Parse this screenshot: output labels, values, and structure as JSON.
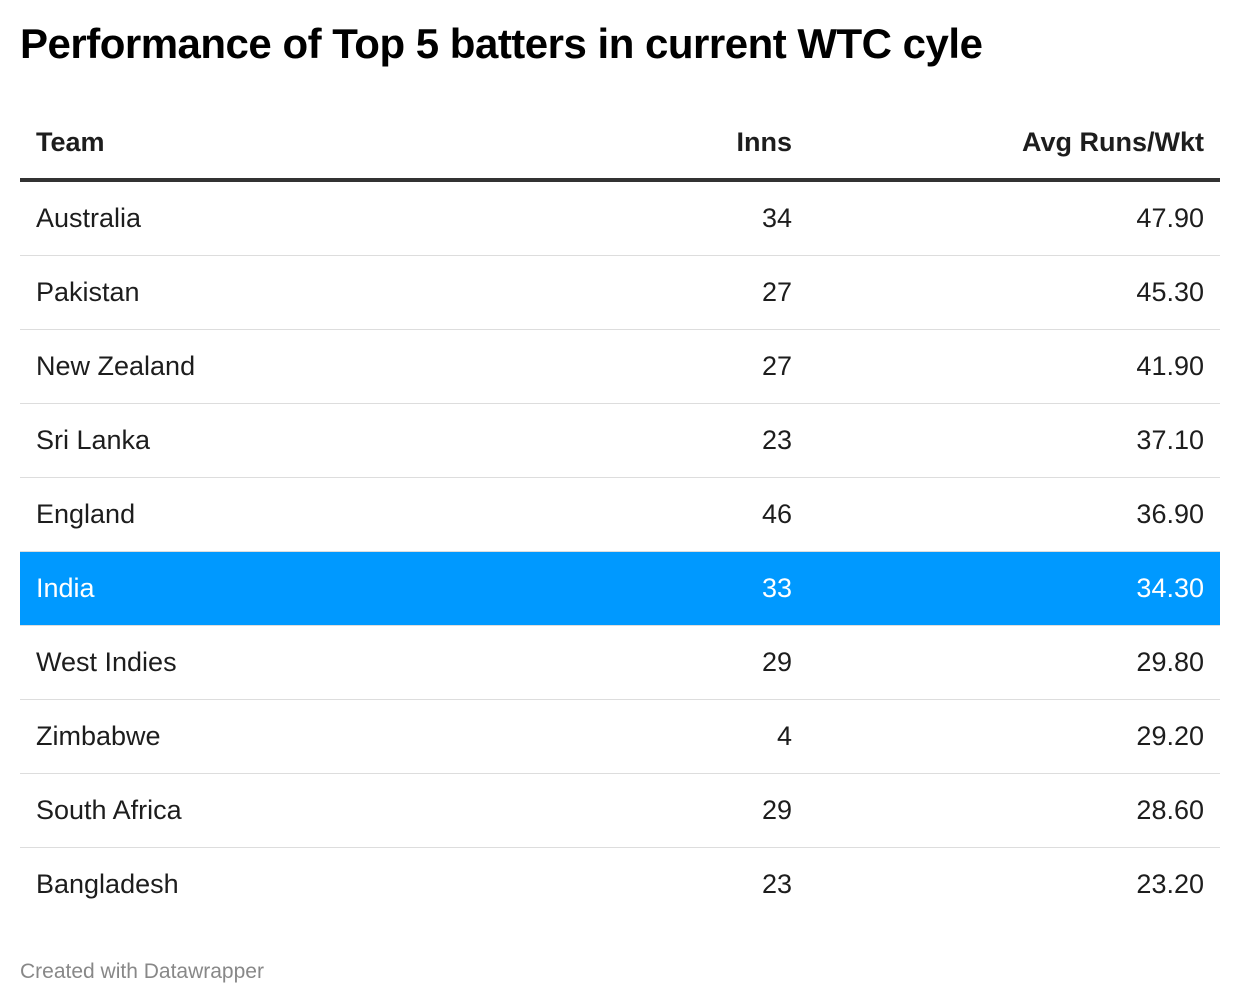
{
  "title": "Performance of Top 5 batters in current WTC cyle",
  "credit": "Created with Datawrapper",
  "highlight_color": "#0099ff",
  "chart_data": {
    "type": "table",
    "columns": [
      "Team",
      "Inns",
      "Avg Runs/Wkt"
    ],
    "rows": [
      {
        "team": "Australia",
        "inns": "34",
        "avg": "47.90"
      },
      {
        "team": "Pakistan",
        "inns": "27",
        "avg": "45.30"
      },
      {
        "team": "New Zealand",
        "inns": "27",
        "avg": "41.90"
      },
      {
        "team": "Sri Lanka",
        "inns": "23",
        "avg": "37.10"
      },
      {
        "team": "England",
        "inns": "46",
        "avg": "36.90"
      },
      {
        "team": "India",
        "inns": "33",
        "avg": "34.30",
        "highlighted": true
      },
      {
        "team": "West Indies",
        "inns": "29",
        "avg": "29.80"
      },
      {
        "team": "Zimbabwe",
        "inns": "4",
        "avg": "29.20"
      },
      {
        "team": "South Africa",
        "inns": "29",
        "avg": "28.60"
      },
      {
        "team": "Bangladesh",
        "inns": "23",
        "avg": "23.20"
      }
    ]
  }
}
